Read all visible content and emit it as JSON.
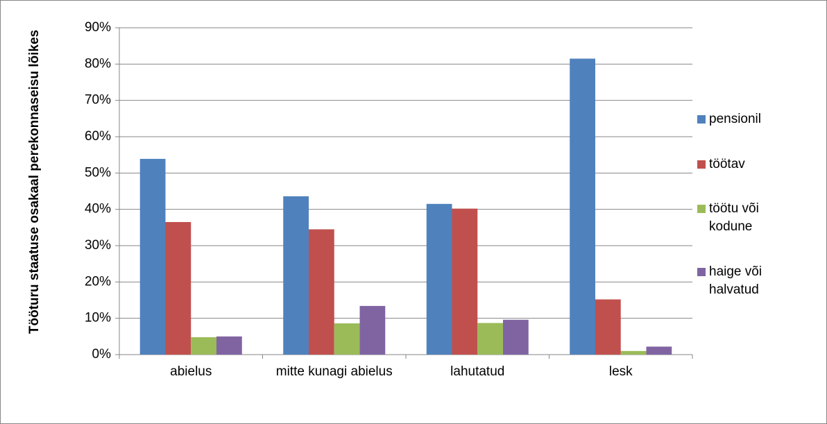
{
  "chart_data": {
    "type": "bar",
    "y_axis_label": "Tööturu staatuse osakaal perekonnaseisu lõikes",
    "categories": [
      "abielus",
      "mitte kunagi abielus",
      "lahutatud",
      "lesk"
    ],
    "series": [
      {
        "name": "pensionil",
        "color": "#4f81bd",
        "values": [
          53.9,
          43.6,
          41.5,
          81.5
        ]
      },
      {
        "name": "töötav",
        "color": "#c0504d",
        "values": [
          36.5,
          34.5,
          40.2,
          15.2
        ]
      },
      {
        "name": "töötu või kodune",
        "color": "#9bbb59",
        "values": [
          4.8,
          8.6,
          8.7,
          1.0
        ]
      },
      {
        "name": "haige või halvatud",
        "color": "#8064a2",
        "values": [
          5.0,
          13.4,
          9.6,
          2.2
        ]
      }
    ],
    "ylim": [
      0,
      90
    ],
    "yticks": [
      {
        "value": 0,
        "label": "0%"
      },
      {
        "value": 10,
        "label": "10%"
      },
      {
        "value": 20,
        "label": "20%"
      },
      {
        "value": 30,
        "label": "30%"
      },
      {
        "value": 40,
        "label": "40%"
      },
      {
        "value": 50,
        "label": "50%"
      },
      {
        "value": 60,
        "label": "60%"
      },
      {
        "value": 70,
        "label": "70%"
      },
      {
        "value": 80,
        "label": "80%"
      },
      {
        "value": 90,
        "label": "90%"
      }
    ],
    "grid": true,
    "legend": "right"
  }
}
